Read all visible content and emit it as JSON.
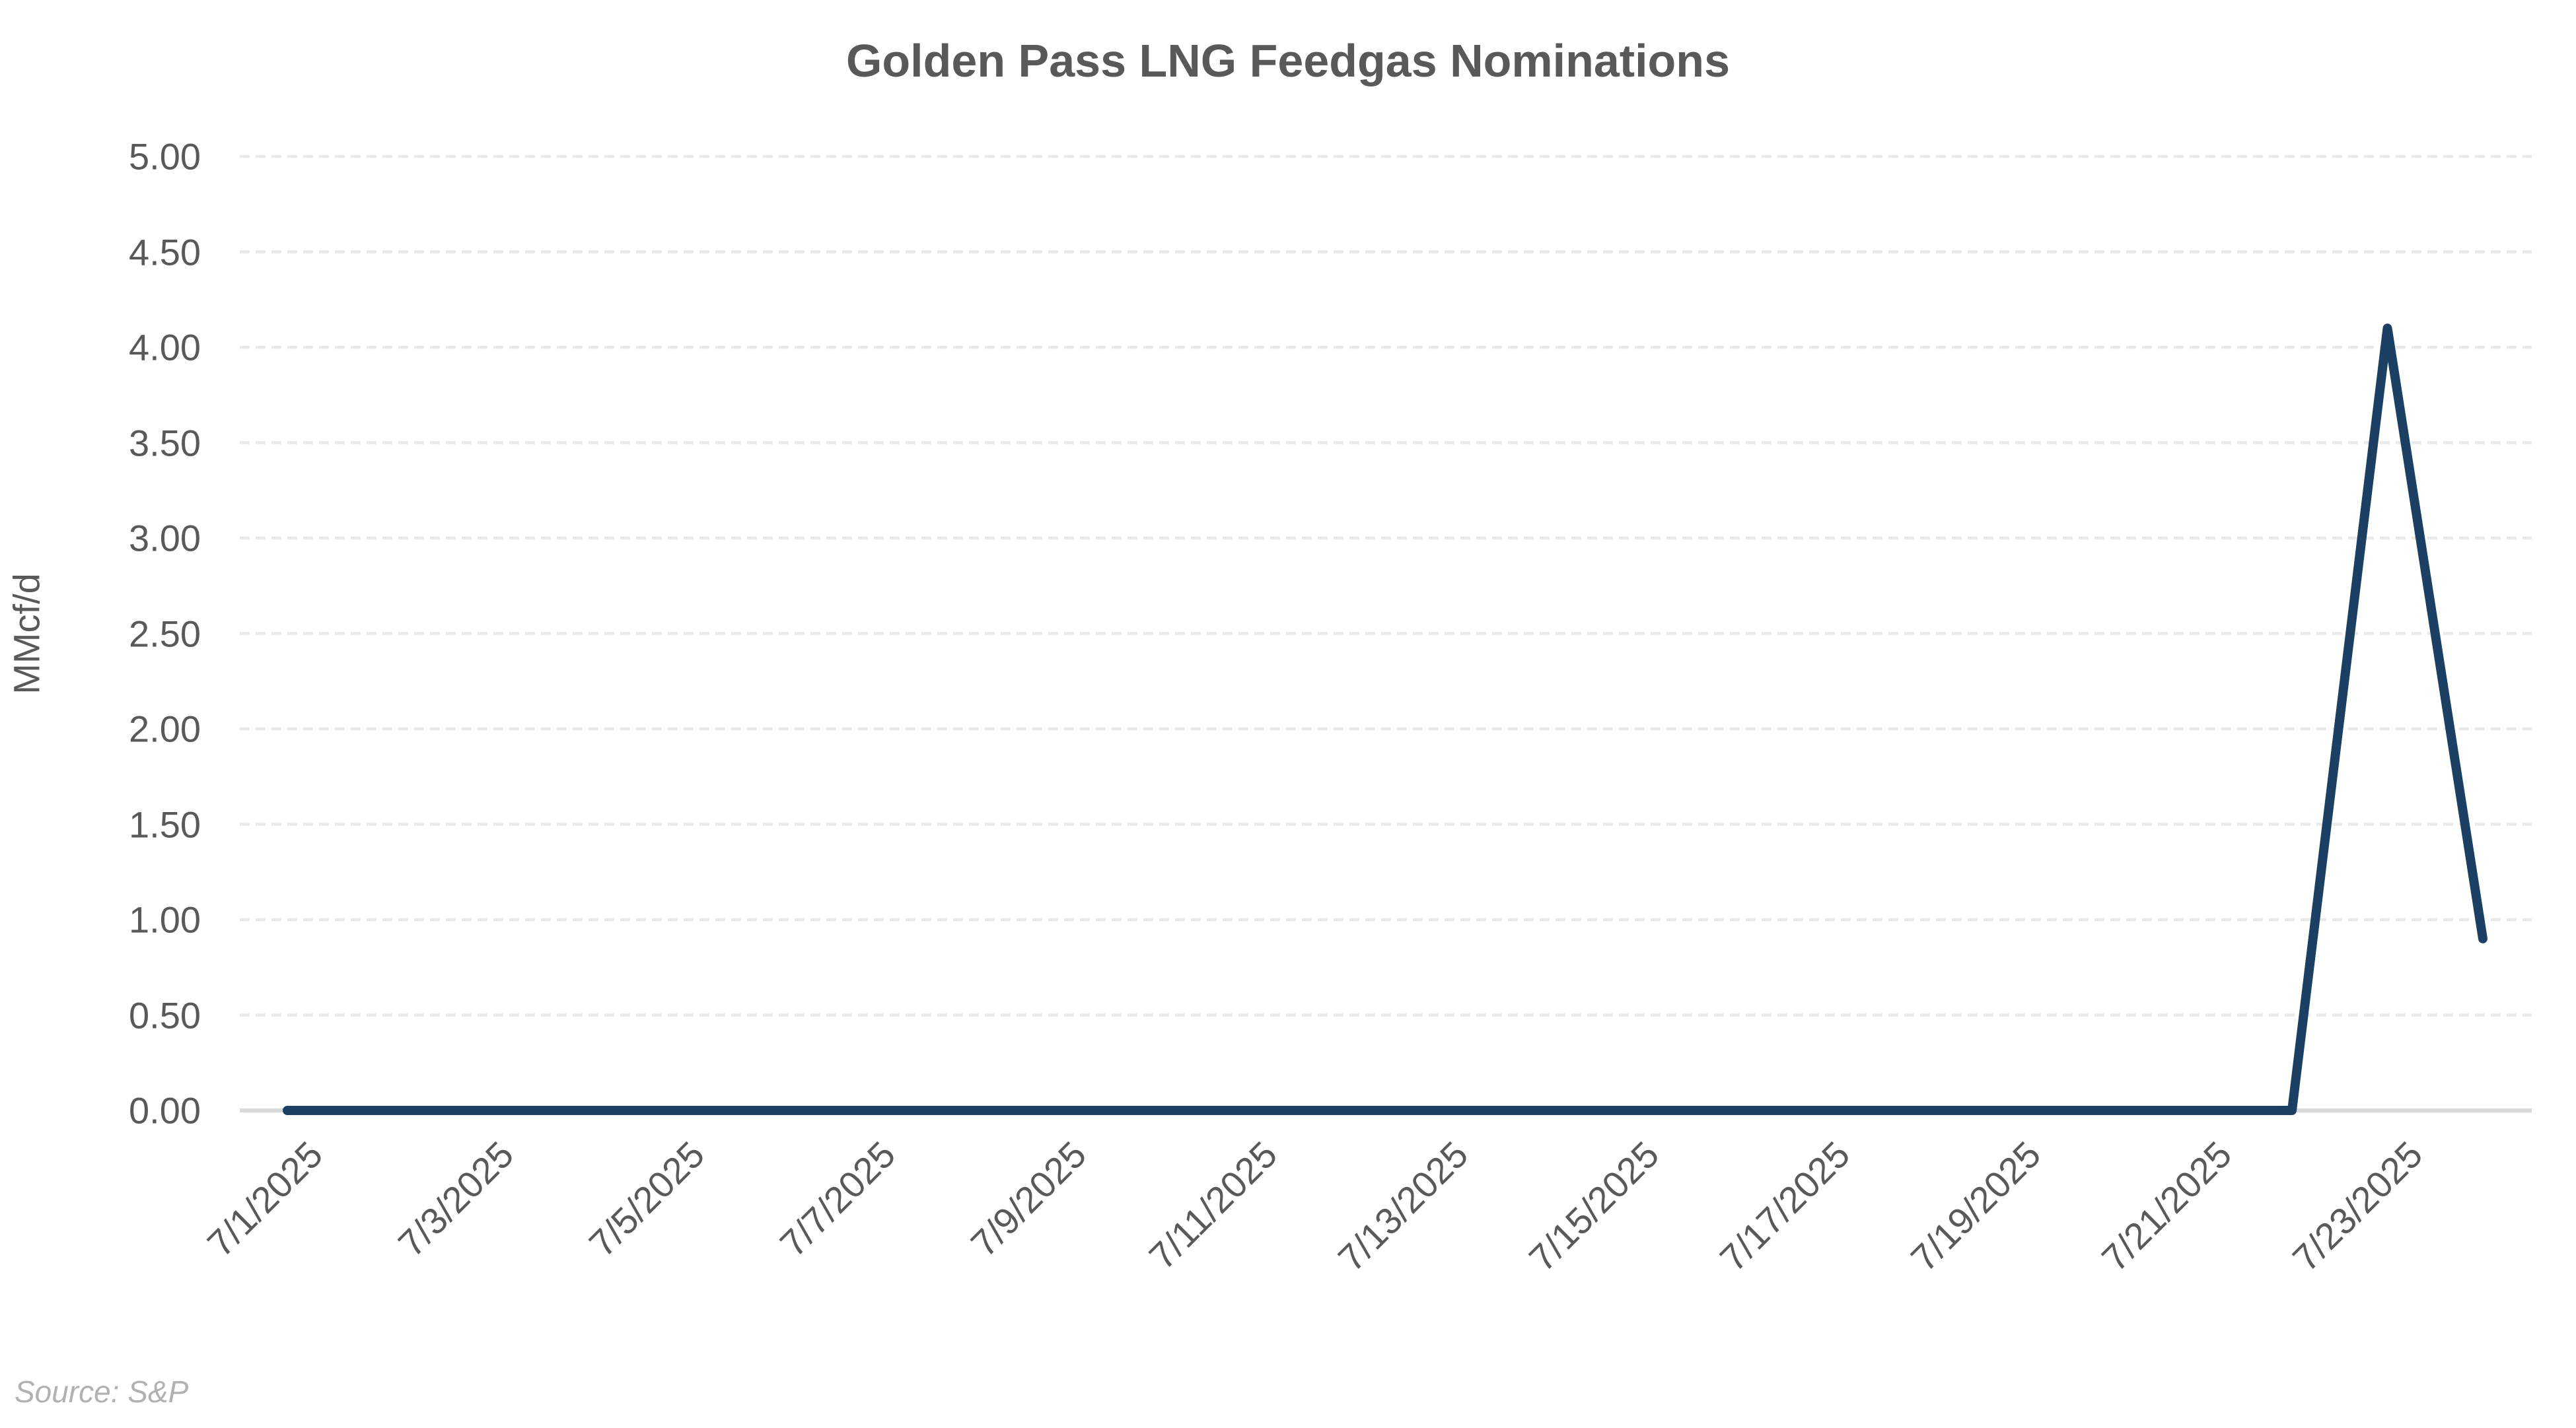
{
  "title": "Golden Pass LNG Feedgas Nominations",
  "source": {
    "text": "Source: S&P"
  },
  "colors": {
    "line": "#1c4063",
    "title": "#58595b",
    "tick_text": "#595959",
    "gridline": "#e9e9e9",
    "axis_line": "#d8d8d8",
    "source_text": "#b1b1b1",
    "background": "#ffffff"
  },
  "chart_data": {
    "type": "line",
    "title": "Golden Pass LNG Feedgas Nominations",
    "ylabel": "MMcf/d",
    "xlabel": "",
    "ylim": [
      0,
      5
    ],
    "ytick_step": 0.5,
    "ytick_labels": [
      "0.00",
      "0.50",
      "1.00",
      "1.50",
      "2.00",
      "2.50",
      "3.00",
      "3.50",
      "4.00",
      "4.50",
      "5.00"
    ],
    "grid": "horizontal-dashed",
    "legend": "none",
    "x": [
      "7/1/2025",
      "7/2/2025",
      "7/3/2025",
      "7/4/2025",
      "7/5/2025",
      "7/6/2025",
      "7/7/2025",
      "7/8/2025",
      "7/9/2025",
      "7/10/2025",
      "7/11/2025",
      "7/12/2025",
      "7/13/2025",
      "7/14/2025",
      "7/15/2025",
      "7/16/2025",
      "7/17/2025",
      "7/18/2025",
      "7/19/2025",
      "7/20/2025",
      "7/21/2025",
      "7/22/2025",
      "7/23/2025",
      "7/24/2025"
    ],
    "values": [
      0.0,
      0.0,
      0.0,
      0.0,
      0.0,
      0.0,
      0.0,
      0.0,
      0.0,
      0.0,
      0.0,
      0.0,
      0.0,
      0.0,
      0.0,
      0.0,
      0.0,
      0.0,
      0.0,
      0.0,
      0.0,
      0.0,
      4.1,
      0.9
    ],
    "x_tick_every": 2,
    "x_tick_labels": [
      "7/1/2025",
      "7/3/2025",
      "7/5/2025",
      "7/7/2025",
      "7/9/2025",
      "7/11/2025",
      "7/13/2025",
      "7/15/2025",
      "7/17/2025",
      "7/19/2025",
      "7/21/2025",
      "7/23/2025"
    ]
  }
}
